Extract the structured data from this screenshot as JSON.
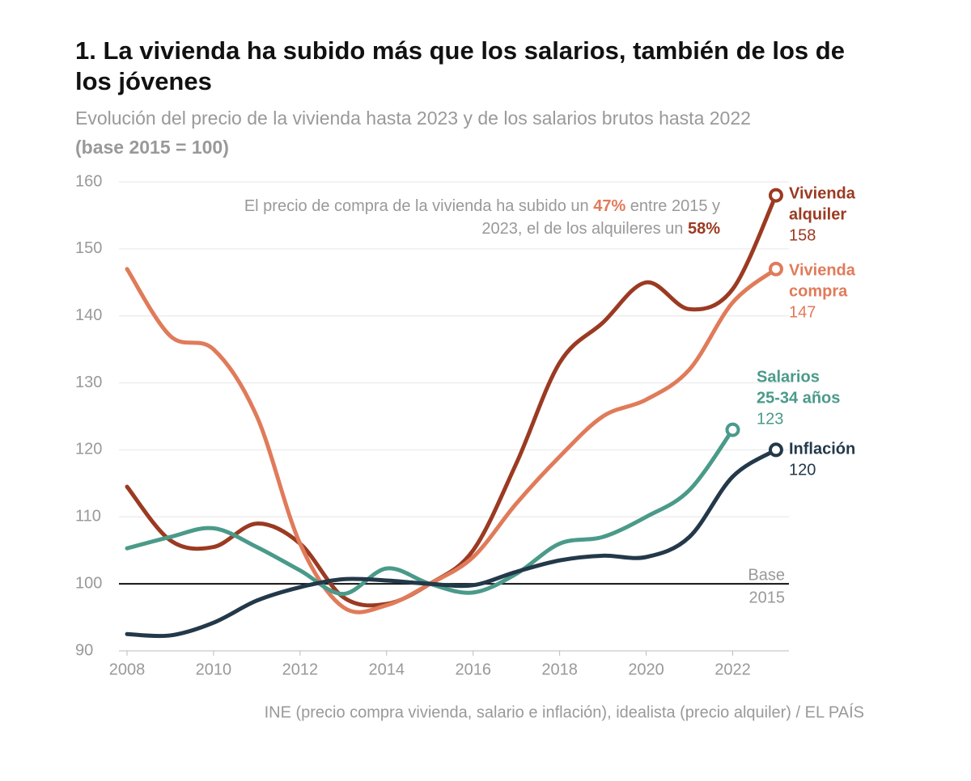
{
  "chart_data": {
    "type": "line",
    "title": "1. La vivienda ha subido más que los salarios, también de los de los jóvenes",
    "subtitle": "Evolución del precio de la vivienda hasta 2023 y de los salarios brutos hasta 2022",
    "subtitle_bold": "(base 2015 = 100)",
    "x": [
      2008,
      2009,
      2010,
      2011,
      2012,
      2013,
      2014,
      2015,
      2016,
      2017,
      2018,
      2019,
      2020,
      2021,
      2022,
      2023
    ],
    "xlim": [
      2008,
      2023.3
    ],
    "xticks": [
      2008,
      2010,
      2012,
      2014,
      2016,
      2018,
      2020,
      2022
    ],
    "ylim": [
      90,
      160
    ],
    "yticks": [
      90,
      100,
      110,
      120,
      130,
      140,
      150,
      160
    ],
    "grid": true,
    "series": [
      {
        "name": [
          "Vivienda",
          "alquiler"
        ],
        "color": "#9b3a22",
        "values": [
          114.5,
          106.5,
          105.5,
          109,
          106,
          98,
          97,
          100,
          105,
          118,
          133,
          139,
          145,
          141,
          144,
          158
        ]
      },
      {
        "name": [
          "Vivienda",
          "compra"
        ],
        "color": "#e07b5a",
        "values": [
          147,
          137,
          135,
          125,
          106,
          96.5,
          96.8,
          100,
          104,
          112,
          119,
          125,
          127.5,
          132,
          142,
          147
        ]
      },
      {
        "name": [
          "Salarios",
          "25-34 años"
        ],
        "color": "#4a9a8a",
        "values": [
          105.3,
          107,
          108.3,
          105.5,
          102,
          98.5,
          102.3,
          100,
          98.7,
          101.5,
          106,
          107,
          110,
          114,
          123,
          null
        ]
      },
      {
        "name": [
          "Inflación"
        ],
        "color": "#23394a",
        "values": [
          92.5,
          92.3,
          94.2,
          97.5,
          99.5,
          100.7,
          100.5,
          100,
          99.8,
          101.8,
          103.5,
          104.2,
          104,
          107,
          116,
          120
        ]
      }
    ],
    "reference_line": {
      "value": 100,
      "label": [
        "Base",
        "2015"
      ]
    },
    "annotation": [
      [
        "El precio de compra de la vivienda ha subido un ",
        "47%",
        " entre 2015 y"
      ],
      [
        "2023, el de los alquileres un ",
        "58%"
      ]
    ],
    "source": "INE (precio compra vivienda, salario e inflación), idealista (precio alquiler) / EL PAÍS"
  }
}
